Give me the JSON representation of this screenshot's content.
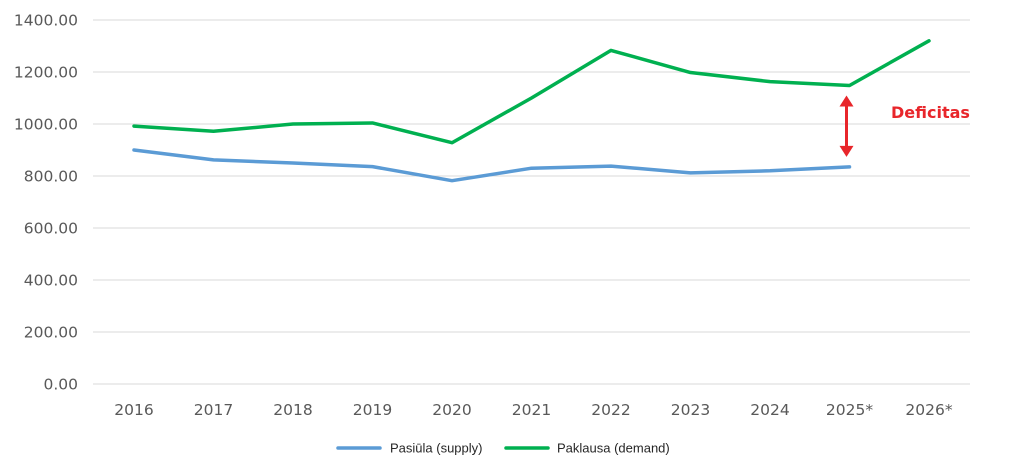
{
  "chart_data": {
    "type": "line",
    "title": "",
    "xlabel": "",
    "ylabel": "",
    "categories": [
      "2016",
      "2017",
      "2018",
      "2019",
      "2020",
      "2021",
      "2022",
      "2023",
      "2024",
      "2025*",
      "2026*"
    ],
    "ylim": [
      0,
      1400
    ],
    "yticks": [
      0,
      200,
      400,
      600,
      800,
      1000,
      1200,
      1400
    ],
    "ytick_labels": [
      "0.00",
      "200.00",
      "400.00",
      "600.00",
      "800.00",
      "1000.00",
      "1200.00",
      "1400.00"
    ],
    "grid": true,
    "legend_position": "bottom",
    "series": [
      {
        "name": "Pasiūla (supply)",
        "color": "#5b9bd5",
        "values": [
          900,
          862,
          850,
          836,
          782,
          830,
          838,
          812,
          820,
          835,
          null
        ]
      },
      {
        "name": "Paklausa (demand)",
        "color": "#00b050",
        "values": [
          992,
          972,
          1000,
          1004,
          928,
          1100,
          1283,
          1198,
          1163,
          1148,
          1320
        ]
      }
    ],
    "annotation": {
      "text": "Deficitas",
      "color": "#e8262b",
      "category": "2025*",
      "from_value": 1148,
      "to_value": 835
    }
  }
}
